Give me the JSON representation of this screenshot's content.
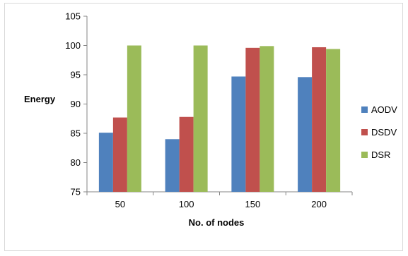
{
  "chart_data": {
    "type": "bar",
    "categories": [
      "50",
      "100",
      "150",
      "200"
    ],
    "series": [
      {
        "name": "AODV",
        "values": [
          85.1,
          84.0,
          94.7,
          94.6
        ],
        "color": "#4f81bd"
      },
      {
        "name": "DSDV",
        "values": [
          87.7,
          87.8,
          99.6,
          99.7
        ],
        "color": "#c0504d"
      },
      {
        "name": "DSR",
        "values": [
          100.0,
          100.0,
          99.9,
          99.4
        ],
        "color": "#9bbb59"
      }
    ],
    "xlabel": "No. of nodes",
    "ylabel": "Energy",
    "ylim": [
      75,
      105
    ],
    "yticks": [
      75,
      80,
      85,
      90,
      95,
      100,
      105
    ],
    "grid": false,
    "legend_position": "right"
  }
}
